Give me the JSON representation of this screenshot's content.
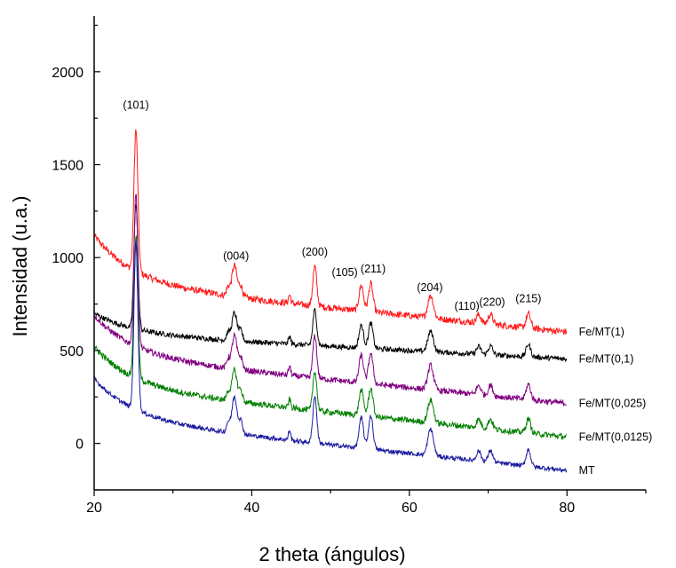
{
  "chart_data": {
    "type": "line",
    "xlabel": "2 theta (ángulos)",
    "ylabel": "Intensidad (u.a.)",
    "xlim": [
      20,
      90
    ],
    "ylim": [
      -250,
      2300
    ],
    "xticks": [
      "20",
      "40",
      "60",
      "80"
    ],
    "yticks": [
      "0",
      "500",
      "1000",
      "1500",
      "2000"
    ],
    "peak_labels": [
      {
        "text": "(101)",
        "x": 25.3,
        "y": 1800
      },
      {
        "text": "(004)",
        "x": 38.0,
        "y": 990
      },
      {
        "text": "(200)",
        "x": 48.0,
        "y": 1010
      },
      {
        "text": "(105)",
        "x": 51.8,
        "y": 900
      },
      {
        "text": "(211)",
        "x": 55.4,
        "y": 920
      },
      {
        "text": "(204)",
        "x": 62.6,
        "y": 820
      },
      {
        "text": "(110)",
        "x": 67.3,
        "y": 720
      },
      {
        "text": "(220)",
        "x": 70.5,
        "y": 740
      },
      {
        "text": "(215)",
        "x": 75.1,
        "y": 760
      }
    ],
    "peaks": [
      {
        "x": 25.3,
        "w": 0.35,
        "h": 1.0
      },
      {
        "x": 37.0,
        "w": 0.3,
        "h": 0.06
      },
      {
        "x": 37.8,
        "w": 0.45,
        "h": 0.22
      },
      {
        "x": 38.6,
        "w": 0.35,
        "h": 0.08
      },
      {
        "x": 44.8,
        "w": 0.2,
        "h": 0.06
      },
      {
        "x": 48.0,
        "w": 0.35,
        "h": 0.28
      },
      {
        "x": 53.9,
        "w": 0.4,
        "h": 0.18
      },
      {
        "x": 55.1,
        "w": 0.4,
        "h": 0.2
      },
      {
        "x": 62.7,
        "w": 0.5,
        "h": 0.16
      },
      {
        "x": 68.8,
        "w": 0.4,
        "h": 0.06
      },
      {
        "x": 70.3,
        "w": 0.4,
        "h": 0.07
      },
      {
        "x": 75.1,
        "w": 0.4,
        "h": 0.1
      }
    ],
    "series": [
      {
        "name": "Fe/MT(1)",
        "color": "#ff1a1a",
        "base_start": 860,
        "base_end": 600,
        "tail": 260,
        "peak_scale": 760,
        "noise": 18
      },
      {
        "name": "Fe/MT(0,1)",
        "color": "#000000",
        "base_start": 590,
        "base_end": 455,
        "tail": 110,
        "peak_scale": 680,
        "noise": 14
      },
      {
        "name": "Fe/MT(0,025)",
        "color": "#800080",
        "base_start": 470,
        "base_end": 215,
        "tail": 220,
        "peak_scale": 820,
        "noise": 16
      },
      {
        "name": "Fe/MT(0,0125)",
        "color": "#007f00",
        "base_start": 300,
        "base_end": 35,
        "tail": 220,
        "peak_scale": 760,
        "noise": 16
      },
      {
        "name": "MT",
        "color": "#1a1aa0",
        "base_start": 130,
        "base_end": -145,
        "tail": 220,
        "peak_scale": 900,
        "noise": 12
      }
    ],
    "grid": false,
    "legend": "labels at right end of each series"
  }
}
